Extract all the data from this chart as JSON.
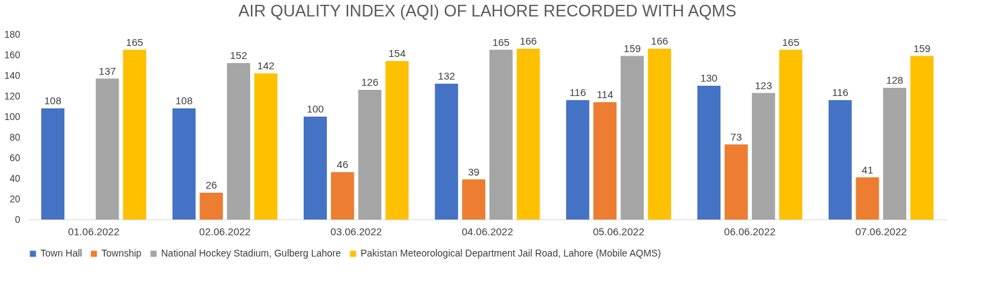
{
  "chart_data": {
    "type": "bar",
    "title": "AIR QUALITY INDEX (AQI) OF LAHORE RECORDED WITH AQMS",
    "categories": [
      "01.06.2022",
      "02.06.2022",
      "03.06.2022",
      "04.06.2022",
      "05.06.2022",
      "06.06.2022",
      "07.06.2022"
    ],
    "series": [
      {
        "name": "Town Hall",
        "color": "#4472c4",
        "values": [
          108,
          108,
          100,
          132,
          116,
          130,
          116
        ]
      },
      {
        "name": "Township",
        "color": "#ed7d31",
        "values": [
          null,
          26,
          46,
          39,
          114,
          73,
          41
        ]
      },
      {
        "name": "National Hockey Stadium, Gulberg Lahore",
        "color": "#a5a5a5",
        "values": [
          137,
          152,
          126,
          165,
          159,
          123,
          128
        ]
      },
      {
        "name": "Pakistan Meteorological Department Jail Road, Lahore (Mobile AQMS)",
        "color": "#ffc000",
        "values": [
          165,
          142,
          154,
          166,
          166,
          165,
          159
        ]
      }
    ],
    "ylim": [
      0,
      180
    ],
    "yticks": [
      0,
      20,
      40,
      60,
      80,
      100,
      120,
      140,
      160,
      180
    ],
    "grid": false,
    "legend": "bottom",
    "data_labels": true
  }
}
